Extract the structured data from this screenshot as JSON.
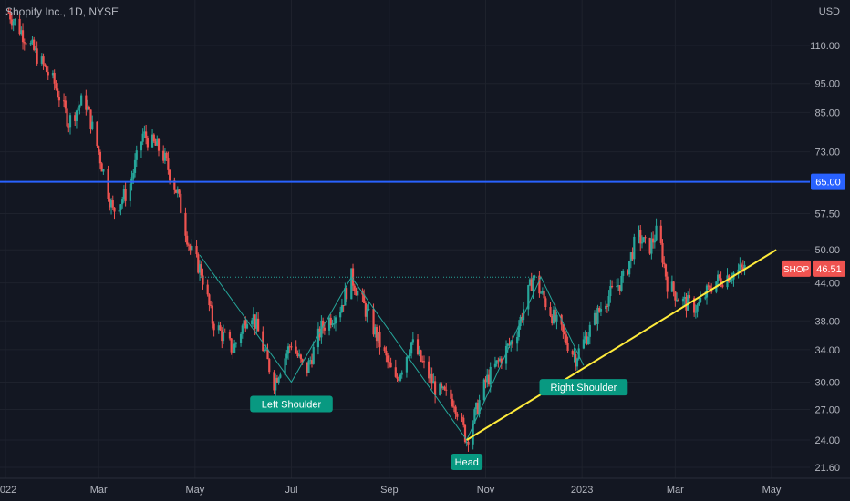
{
  "header": {
    "title": "Shopify Inc., 1D, NYSE"
  },
  "colors": {
    "background": "#131722",
    "grid": "#1e222d",
    "axis_text": "#b2b5be",
    "up": "#26a69a",
    "down": "#ef5350",
    "resistance": "#2962ff",
    "trendline": "#ffeb3b",
    "pattern": "#26a69a",
    "label_bg": "#089981"
  },
  "chart_data": {
    "type": "candlestick",
    "symbol": "SHOP",
    "interval": "1D",
    "exchange": "NYSE",
    "y_scale": "log",
    "currency_label": "USD",
    "y_ticks": [
      110,
      95,
      85,
      73,
      65,
      57.5,
      50,
      44,
      38,
      34,
      30,
      27,
      24,
      21.6
    ],
    "y_tick_labels": [
      "110.00",
      "95.00",
      "85.00",
      "73.00",
      "65.00",
      "57.50",
      "50.00",
      "44.00",
      "38.00",
      "34.00",
      "30.00",
      "27.00",
      "24.00",
      "21.60"
    ],
    "x_ticks": [
      "2022-01-01",
      "2022-03-01",
      "2022-05-01",
      "2022-07-01",
      "2022-09-01",
      "2022-11-01",
      "2023-01-01",
      "2023-03-01",
      "2023-05-01"
    ],
    "x_tick_labels": [
      "2022",
      "Mar",
      "May",
      "Jul",
      "Sep",
      "Nov",
      "2023",
      "Mar",
      "May"
    ],
    "price_path": [
      [
        "2022-01-03",
        125
      ],
      [
        "2022-01-15",
        112
      ],
      [
        "2022-02-01",
        95
      ],
      [
        "2022-02-10",
        82
      ],
      [
        "2022-02-20",
        90
      ],
      [
        "2022-03-01",
        73
      ],
      [
        "2022-03-10",
        58
      ],
      [
        "2022-03-20",
        63
      ],
      [
        "2022-03-29",
        78
      ],
      [
        "2022-04-10",
        73
      ],
      [
        "2022-04-20",
        62
      ],
      [
        "2022-04-28",
        50
      ],
      [
        "2022-05-05",
        46
      ],
      [
        "2022-05-12",
        38
      ],
      [
        "2022-05-25",
        34
      ],
      [
        "2022-06-05",
        40
      ],
      [
        "2022-06-20",
        30
      ],
      [
        "2022-07-01",
        35
      ],
      [
        "2022-07-10",
        31
      ],
      [
        "2022-07-20",
        37
      ],
      [
        "2022-08-01",
        40
      ],
      [
        "2022-08-08",
        45
      ],
      [
        "2022-08-20",
        38
      ],
      [
        "2022-09-05",
        30
      ],
      [
        "2022-09-15",
        35
      ],
      [
        "2022-10-01",
        29
      ],
      [
        "2022-10-12",
        28
      ],
      [
        "2022-10-20",
        24
      ],
      [
        "2022-11-01",
        30
      ],
      [
        "2022-11-20",
        36
      ],
      [
        "2022-12-01",
        45
      ],
      [
        "2022-12-15",
        38
      ],
      [
        "2022-12-28",
        33
      ],
      [
        "2023-01-15",
        41
      ],
      [
        "2023-01-28",
        45
      ],
      [
        "2023-02-05",
        53
      ],
      [
        "2023-02-12",
        50
      ],
      [
        "2023-02-18",
        54
      ],
      [
        "2023-02-24",
        44
      ],
      [
        "2023-03-05",
        41
      ],
      [
        "2023-03-15",
        40
      ],
      [
        "2023-03-25",
        44
      ],
      [
        "2023-04-05",
        45.5
      ],
      [
        "2023-04-14",
        46.51
      ]
    ],
    "last_price": {
      "symbol": "SHOP",
      "value": "46.51"
    },
    "horizontal_level": {
      "value": 65,
      "label": "65.00"
    },
    "neckline": {
      "from": [
        "2022-05-04",
        45
      ],
      "to": [
        "2022-12-06",
        45
      ]
    },
    "pattern_path": [
      [
        "2022-05-04",
        49
      ],
      [
        "2022-07-01",
        30
      ],
      [
        "2022-08-08",
        45
      ],
      [
        "2022-10-20",
        24
      ],
      [
        "2022-12-06",
        45
      ],
      [
        "2023-01-02",
        32
      ]
    ],
    "trendline": {
      "from": [
        "2022-10-20",
        24
      ],
      "to": [
        "2023-05-04",
        50
      ]
    },
    "annotations": [
      {
        "text": "Left Shoulder",
        "date": "2022-07-01",
        "price": 30
      },
      {
        "text": "Head",
        "date": "2022-10-20",
        "price": 24
      },
      {
        "text": "Right Shoulder",
        "date": "2023-01-02",
        "price": 32
      }
    ]
  }
}
